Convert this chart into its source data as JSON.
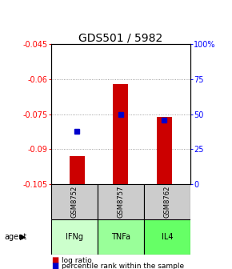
{
  "title": "GDS501 / 5982",
  "ylim_left": [
    -0.105,
    -0.045
  ],
  "ylim_right": [
    0,
    100
  ],
  "yticks_left": [
    -0.105,
    -0.09,
    -0.075,
    -0.06,
    -0.045
  ],
  "yticks_right": [
    0,
    25,
    50,
    75,
    100
  ],
  "ytick_labels_left": [
    "-0.105",
    "-0.09",
    "-0.075",
    "-0.06",
    "-0.045"
  ],
  "ytick_labels_right": [
    "0",
    "25",
    "50",
    "75",
    "100%"
  ],
  "samples": [
    "GSM8752",
    "GSM8757",
    "GSM8762"
  ],
  "agents": [
    "IFNg",
    "TNFa",
    "IL4"
  ],
  "log_ratio": [
    -0.093,
    -0.062,
    -0.076
  ],
  "percentile_rank": [
    38,
    50,
    46
  ],
  "bar_color": "#cc0000",
  "dot_color": "#0000cc",
  "agent_colors": [
    "#ccffcc",
    "#99ff99",
    "#66ff66"
  ],
  "sample_bg_color": "#cccccc",
  "bar_baseline": -0.105,
  "bar_width": 0.35,
  "grid_color": "#888888",
  "title_fontsize": 10,
  "tick_fontsize": 7,
  "label_fontsize": 7,
  "legend_fontsize": 6.5
}
